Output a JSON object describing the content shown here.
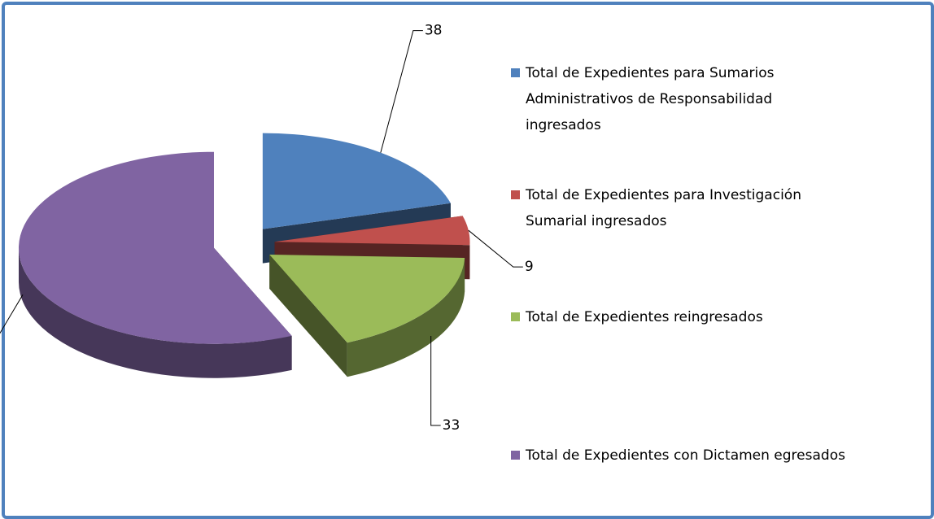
{
  "chart_data": {
    "type": "pie",
    "categories": [
      "Total de Expedientes para Sumarios Administrativos de Responsabilidad ingresados",
      "Total de Expedientes para Investigación Sumarial ingresados",
      "Total de Expedientes reingresados",
      "Total de Expedientes con Dictamen egresados"
    ],
    "values": [
      38,
      9,
      33,
      104
    ],
    "colors": [
      "#4f81bd",
      "#c0504d",
      "#9bbb59",
      "#8064a2"
    ],
    "legend": "right"
  }
}
